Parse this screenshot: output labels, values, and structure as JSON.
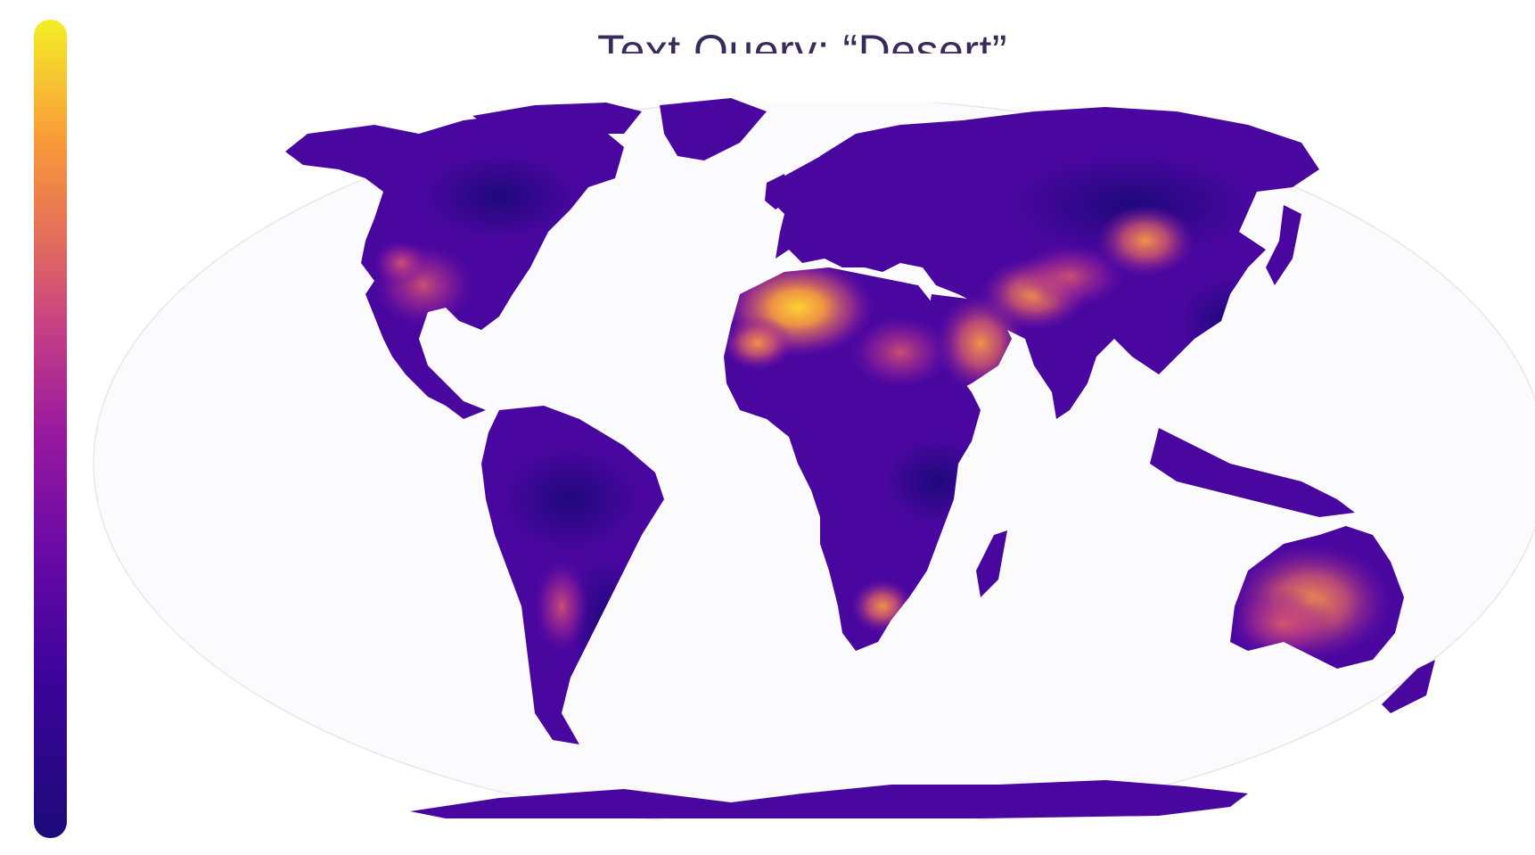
{
  "title": "Text Query: “Desert”",
  "colors": {
    "scale_low": "#1c0a7a",
    "scale_mid_low": "#6a09a6",
    "scale_mid": "#b33592",
    "scale_mid_high": "#e7705c",
    "scale_high": "#f7e72a",
    "ocean": "#fbfbfd",
    "ocean_edge": "#e6e6ee"
  },
  "legend": {
    "type": "continuous-colorbar",
    "orientation": "vertical",
    "placement": "left"
  },
  "map": {
    "projection": "robinson-like",
    "scalar_layer": "text-query similarity (plasma colormap)",
    "hotspots": [
      {
        "region": "Sahara",
        "level": 1.0
      },
      {
        "region": "Arabian Peninsula",
        "level": 0.75
      },
      {
        "region": "Iran / Central Asia",
        "level": 0.7
      },
      {
        "region": "Gobi / Mongolia",
        "level": 0.7
      },
      {
        "region": "Central Australia",
        "level": 0.75
      },
      {
        "region": "Southwestern North America",
        "level": 0.6
      },
      {
        "region": "Kalahari / Namib",
        "level": 0.65
      },
      {
        "region": "Atacama / Patagonia",
        "level": 0.6
      }
    ]
  }
}
